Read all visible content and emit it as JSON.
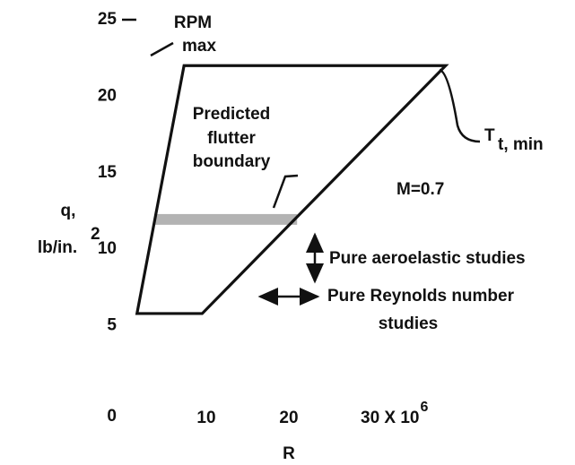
{
  "chart_data": {
    "type": "envelope",
    "xlabel": "R",
    "ylabel": [
      "q,",
      "lb/in."
    ],
    "ylabel_superscript": "2",
    "xlim": [
      0,
      30
    ],
    "ylim": [
      0,
      25
    ],
    "xticks": [
      10,
      20,
      {
        "value": 30,
        "label": "30 X 10"
      }
    ],
    "x_exponent": "6",
    "yticks": [
      0,
      5,
      10,
      15,
      20,
      25
    ],
    "envelope": [
      [
        1.6,
        5.8
      ],
      [
        7.3,
        22
      ],
      [
        39,
        22
      ],
      [
        9.5,
        5.8
      ]
    ],
    "color": "#111111",
    "flutter_band": {
      "x": [
        3.7,
        21
      ],
      "y": [
        11.6,
        12.3
      ],
      "color": "#9a9a9a"
    },
    "annotations": {
      "rpm": [
        "RPM",
        "max"
      ],
      "flutter": [
        "Predicted",
        "flutter",
        "boundary"
      ],
      "tt": {
        "main": "T",
        "sub": "t, min"
      },
      "mach": "M=0.7",
      "aeroelastic": "Pure aeroelastic studies",
      "reynolds": [
        "Pure Reynolds number",
        "studies"
      ]
    }
  }
}
